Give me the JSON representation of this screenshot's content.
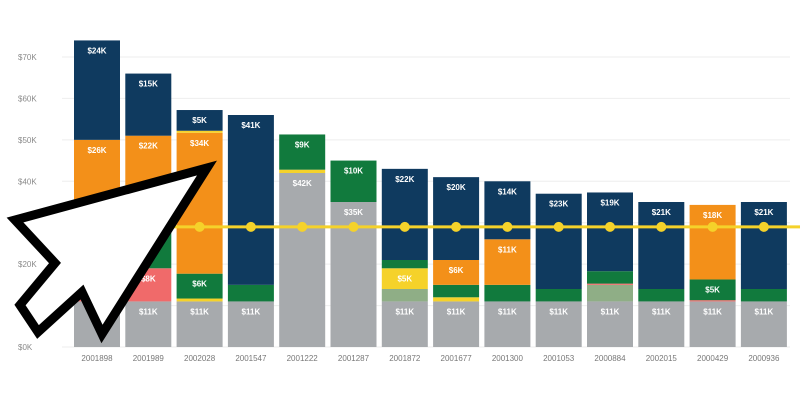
{
  "chart_data": {
    "type": "bar",
    "stacked": true,
    "ylim": [
      0,
      70
    ],
    "yticks": [
      "$0K",
      "$10K",
      "$20K",
      "$30K",
      "$40K",
      "$50K",
      "$60K",
      "$70K"
    ],
    "grid": true,
    "colors": {
      "gray": "#a7aaad",
      "red": "#f06a6a",
      "sage": "#8fae86",
      "yellow": "#f5d22a",
      "green": "#117a3d",
      "orange": "#f39019",
      "navy": "#0f3a5f",
      "line": "#f5d22a"
    },
    "categories": [
      "2001898",
      "2001989",
      "2002028",
      "2001547",
      "2001222",
      "2001287",
      "2001872",
      "2001677",
      "2001300",
      "2001053",
      "2000884",
      "2002015",
      "2000429",
      "2000936"
    ],
    "bars": [
      [
        [
          "gray",
          11,
          "$11K"
        ],
        [
          "red",
          2,
          ""
        ],
        [
          "green",
          11,
          ""
        ],
        [
          "orange",
          26,
          "$26K"
        ],
        [
          "navy",
          24,
          "$24K"
        ]
      ],
      [
        [
          "gray",
          11,
          "$11K"
        ],
        [
          "red",
          8,
          "$8K"
        ],
        [
          "green",
          10,
          ""
        ],
        [
          "orange",
          22,
          "$22K"
        ],
        [
          "navy",
          15,
          "$15K"
        ]
      ],
      [
        [
          "gray",
          11,
          "$11K"
        ],
        [
          "yellow",
          0.7,
          ""
        ],
        [
          "green",
          6,
          "$6K"
        ],
        [
          "orange",
          34,
          "$34K"
        ],
        [
          "yellow",
          0.5,
          ""
        ],
        [
          "navy",
          5,
          "$5K"
        ]
      ],
      [
        [
          "gray",
          11,
          "$11K"
        ],
        [
          "green",
          4,
          ""
        ],
        [
          "navy",
          41,
          "$41K"
        ]
      ],
      [
        [
          "gray",
          42,
          "$42K"
        ],
        [
          "yellow",
          0.8,
          ""
        ],
        [
          "green",
          8.5,
          "$9K"
        ]
      ],
      [
        [
          "gray",
          35,
          "$35K"
        ],
        [
          "green",
          10,
          "$10K"
        ]
      ],
      [
        [
          "gray",
          11,
          "$11K"
        ],
        [
          "sage",
          3,
          ""
        ],
        [
          "yellow",
          5,
          "$5K"
        ],
        [
          "green",
          2,
          ""
        ],
        [
          "navy",
          22,
          "$22K"
        ]
      ],
      [
        [
          "gray",
          11,
          "$11K"
        ],
        [
          "yellow",
          1,
          ""
        ],
        [
          "green",
          3,
          ""
        ],
        [
          "orange",
          6,
          "$6K"
        ],
        [
          "navy",
          20,
          "$20K"
        ]
      ],
      [
        [
          "gray",
          11,
          "$11K"
        ],
        [
          "green",
          4,
          ""
        ],
        [
          "orange",
          11,
          "$11K"
        ],
        [
          "navy",
          14,
          "$14K"
        ]
      ],
      [
        [
          "gray",
          11,
          "$11K"
        ],
        [
          "green",
          3,
          ""
        ],
        [
          "navy",
          23,
          "$23K"
        ]
      ],
      [
        [
          "gray",
          11,
          "$11K"
        ],
        [
          "sage",
          4,
          ""
        ],
        [
          "red",
          0.3,
          ""
        ],
        [
          "green",
          3,
          ""
        ],
        [
          "navy",
          19,
          "$19K"
        ]
      ],
      [
        [
          "gray",
          11,
          "$11K"
        ],
        [
          "green",
          3,
          ""
        ],
        [
          "navy",
          21,
          "$21K"
        ]
      ],
      [
        [
          "gray",
          11,
          "$11K"
        ],
        [
          "red",
          0.3,
          ""
        ],
        [
          "green",
          5,
          "$5K"
        ],
        [
          "orange",
          18,
          "$18K"
        ]
      ],
      [
        [
          "gray",
          11,
          "$11K"
        ],
        [
          "green",
          3,
          ""
        ],
        [
          "navy",
          21,
          "$21K"
        ]
      ]
    ],
    "line_values": [
      29,
      29,
      29,
      29,
      29,
      29,
      29,
      29,
      29,
      29,
      29,
      29,
      29,
      29
    ]
  },
  "overlay": {
    "icon": "mouse-pointer-cursor-icon"
  }
}
